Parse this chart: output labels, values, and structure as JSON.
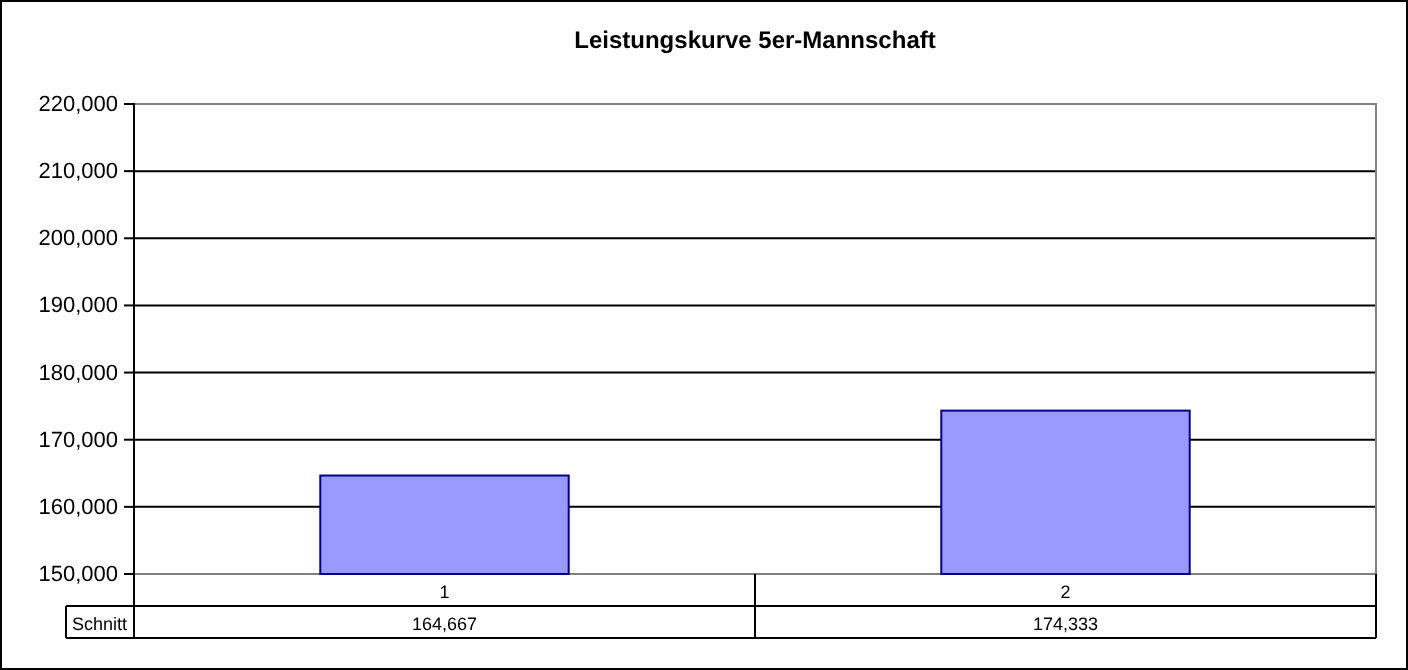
{
  "chart_data": {
    "type": "bar",
    "title": "Leistungskurve 5er-Mannschaft",
    "categories": [
      "1",
      "2"
    ],
    "series": [
      {
        "name": "Schnitt",
        "color": "#9999ff",
        "values": [
          164667,
          174333
        ],
        "value_labels": [
          "164,667",
          "174,333"
        ]
      }
    ],
    "ylim": [
      150000,
      220000
    ],
    "yticks": [
      {
        "value": 150000,
        "label": "150,000"
      },
      {
        "value": 160000,
        "label": "160,000"
      },
      {
        "value": 170000,
        "label": "170,000"
      },
      {
        "value": 180000,
        "label": "180,000"
      },
      {
        "value": 190000,
        "label": "190,000"
      },
      {
        "value": 200000,
        "label": "200,000"
      },
      {
        "value": 210000,
        "label": "210,000"
      },
      {
        "value": 220000,
        "label": "220,000"
      }
    ],
    "grid": "y"
  }
}
